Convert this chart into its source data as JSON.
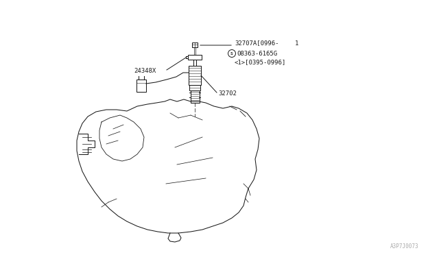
{
  "bg_color": "#ffffff",
  "line_color": "#1a1a1a",
  "text_color": "#1a1a1a",
  "label_32707A": "32707A[0996-",
  "label_1": "1",
  "label_S_text": "S",
  "label_S_line": "08363-6165G",
  "label_compat": "<1>[0395-0996]",
  "label_24348X": "24348X",
  "label_32702": "32702",
  "label_footer": "A3P7J0073",
  "annotation_fontsize": 6.5,
  "footer_fontsize": 5.5
}
